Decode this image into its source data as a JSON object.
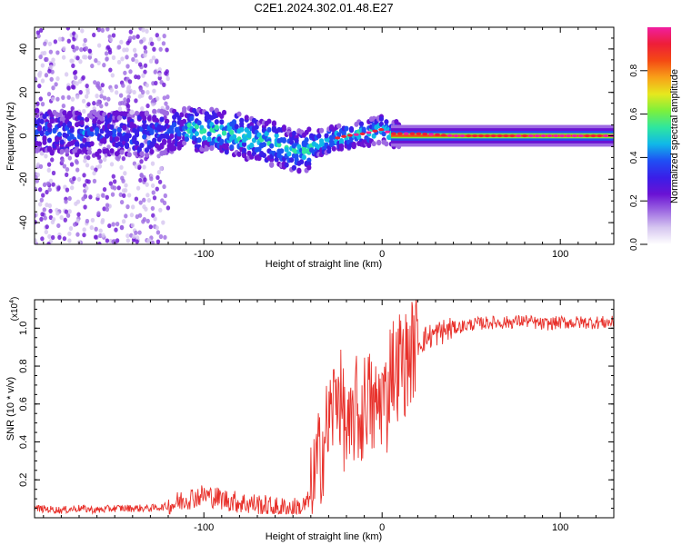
{
  "title": "C2E1.2024.302.01.48.E27",
  "colors": {
    "snr_line": "#e8302a",
    "axis": "#000000",
    "background": "#ffffff",
    "colormap": [
      "#ffffff",
      "#d6c6f0",
      "#9e6ae2",
      "#6a12d4",
      "#3a1ee8",
      "#1f4ff4",
      "#10b8e8",
      "#2ee6a0",
      "#7cf03c",
      "#e6e81e",
      "#f8a018",
      "#f44a14",
      "#ee1e38",
      "#f01ea0"
    ]
  },
  "chart_data": [
    {
      "type": "heatmap",
      "xlabel": "Height of straight line (km)",
      "ylabel": "Frequency (Hz)",
      "xlim": [
        -195,
        130
      ],
      "ylim": [
        -50,
        50
      ],
      "xticks": [
        -100,
        0,
        100
      ],
      "yticks": [
        -40,
        -20,
        0,
        20,
        40
      ],
      "grid": false,
      "ridge_centre_freq": [
        [
          -190,
          2
        ],
        [
          -170,
          1
        ],
        [
          -150,
          1
        ],
        [
          -130,
          1
        ],
        [
          -110,
          3
        ],
        [
          -100,
          3
        ],
        [
          -90,
          2
        ],
        [
          -80,
          0
        ],
        [
          -70,
          -2
        ],
        [
          -60,
          -4
        ],
        [
          -50,
          -7
        ],
        [
          -45,
          -8
        ],
        [
          -40,
          -5
        ],
        [
          -35,
          -3
        ],
        [
          -30,
          -2
        ],
        [
          -20,
          0
        ],
        [
          -10,
          1
        ],
        [
          0,
          3
        ],
        [
          5,
          1
        ],
        [
          10,
          1
        ],
        [
          20,
          1
        ],
        [
          40,
          0
        ],
        [
          60,
          0
        ],
        [
          80,
          0
        ],
        [
          100,
          0
        ],
        [
          130,
          0
        ]
      ],
      "colorbar": {
        "label": "Normalized spectral amplitude",
        "range": [
          0,
          1
        ],
        "ticks": [
          "0.0",
          "0.2",
          "0.4",
          "0.6",
          "0.8"
        ]
      }
    },
    {
      "type": "line",
      "xlabel": "Height of straight line (km)",
      "ylabel": "SNR (10 * v/v)",
      "y_multiplier": "(x10",
      "y_multiplier_exp": "4",
      "y_multiplier_close": ")",
      "xlim": [
        -195,
        130
      ],
      "ylim": [
        0,
        1.15
      ],
      "xticks": [
        -100,
        0,
        100
      ],
      "yticks": [
        0.2,
        0.4,
        0.6,
        0.8,
        1.0
      ],
      "grid": false,
      "series": [
        {
          "x": [
            -195,
            -180,
            -170,
            -160,
            -150,
            -140,
            -130,
            -120,
            -110,
            -100,
            -90,
            -80,
            -70,
            -60,
            -50,
            -45,
            -40,
            -37,
            -34,
            -30,
            -27,
            -25,
            -22,
            -20,
            -18,
            -15,
            -12,
            -10,
            -8,
            -5,
            -2,
            0,
            3,
            5,
            8,
            10,
            12,
            15,
            18,
            20,
            25,
            30,
            40,
            50,
            60,
            70,
            80,
            90,
            100,
            110,
            120,
            130
          ],
          "y": [
            0.05,
            0.04,
            0.05,
            0.04,
            0.05,
            0.05,
            0.05,
            0.06,
            0.1,
            0.12,
            0.1,
            0.08,
            0.07,
            0.05,
            0.05,
            0.05,
            0.1,
            0.25,
            0.35,
            0.5,
            0.6,
            0.7,
            0.55,
            0.45,
            0.4,
            0.6,
            0.5,
            0.6,
            0.65,
            0.55,
            0.6,
            0.65,
            0.6,
            0.85,
            0.75,
            0.85,
            0.8,
            0.85,
            0.9,
            0.92,
            0.95,
            0.97,
            1.0,
            1.02,
            1.03,
            1.03,
            1.04,
            1.02,
            1.03,
            1.03,
            1.03,
            1.03
          ]
        }
      ]
    }
  ]
}
